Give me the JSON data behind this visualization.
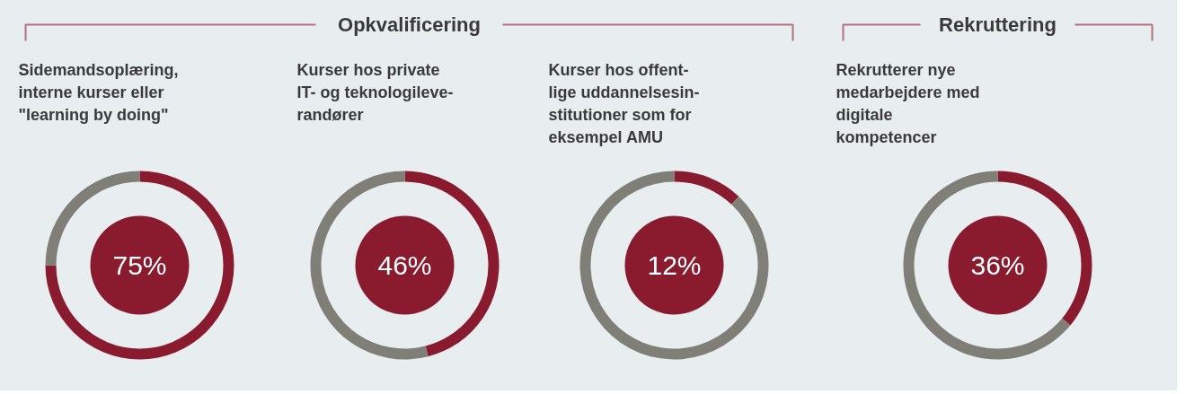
{
  "chart_data": [
    {
      "type": "donut",
      "title": "Sidemandsoplæring,\ninterne kurser eller\n\"learning by doing\"",
      "annotations": [
        "Opkvalificering"
      ],
      "categories": [
        null,
        null
      ],
      "values": [
        75,
        25
      ],
      "colors": [
        "#8a1a2e",
        "#7f7f78"
      ],
      "value_labels": [
        "75%",
        null
      ]
    },
    {
      "type": "donut",
      "title": "Kurser hos private\nIT- og teknologileve-\nrandører",
      "categories": [
        null,
        null
      ],
      "values": [
        46,
        54
      ],
      "colors": [
        "#8a1a2e",
        "#7f7f78"
      ],
      "value_labels": [
        "46%",
        null
      ]
    },
    {
      "type": "donut",
      "title": "Kurser hos offent-\nlige uddannelsesin-\nstitutioner som for\neksempel AMU",
      "categories": [
        null,
        null
      ],
      "values": [
        12,
        88
      ],
      "colors": [
        "#8a1a2e",
        "#7f7f78"
      ],
      "value_labels": [
        "12%",
        null
      ]
    },
    {
      "type": "donut",
      "title": "Rekrutterer nye\nmedarbejdere med\ndigitale\nkompetencer",
      "annotations": [
        "Rekruttering"
      ],
      "categories": [
        null,
        null
      ],
      "values": [
        36,
        64
      ],
      "colors": [
        "#8a1a2e",
        "#7f7f78"
      ],
      "value_labels": [
        "36%",
        null
      ]
    }
  ]
}
